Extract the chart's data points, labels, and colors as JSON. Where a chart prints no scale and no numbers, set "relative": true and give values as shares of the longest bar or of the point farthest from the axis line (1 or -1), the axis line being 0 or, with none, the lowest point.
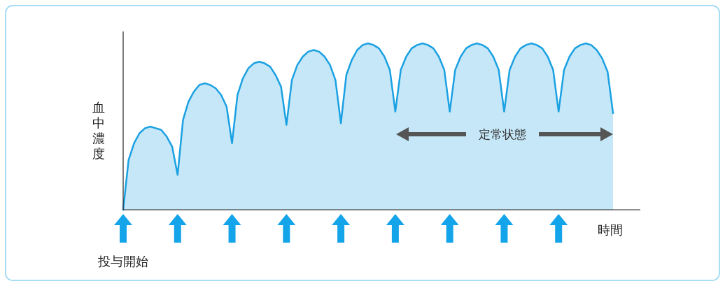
{
  "chart_data": {
    "type": "area",
    "relative": true,
    "xlabel": "時間",
    "ylabel": "血中濃度",
    "categories": [
      null,
      null,
      null,
      null,
      null,
      null,
      null,
      null,
      null,
      null,
      null,
      null,
      null,
      null,
      null,
      null,
      null,
      null,
      null,
      null,
      null,
      null,
      null,
      null,
      null,
      null,
      null,
      null,
      null,
      null,
      null,
      null,
      null,
      null,
      null,
      null,
      null,
      null,
      null,
      null,
      null,
      null,
      null,
      null,
      null,
      null,
      null,
      null,
      null,
      null,
      null,
      null,
      null,
      null,
      null,
      null,
      null,
      null,
      null,
      null,
      null,
      null,
      null,
      null,
      null,
      null,
      null,
      null,
      null,
      null,
      null,
      null,
      null,
      null,
      null,
      null,
      null,
      null,
      null,
      null,
      null,
      null,
      null,
      null,
      null,
      null,
      null,
      null,
      null,
      null,
      null
    ],
    "series": [
      {
        "color": "#1ba1e2",
        "values": [
          0,
          0.3,
          0.4,
          0.46,
          0.49,
          0.5,
          0.49,
          0.48,
          0.44,
          0.38,
          0.21,
          0.54,
          0.65,
          0.71,
          0.75,
          0.76,
          0.75,
          0.73,
          0.69,
          0.62,
          0.4,
          0.69,
          0.79,
          0.85,
          0.88,
          0.89,
          0.88,
          0.86,
          0.81,
          0.74,
          0.51,
          0.78,
          0.87,
          0.92,
          0.95,
          0.96,
          0.95,
          0.92,
          0.87,
          0.78,
          0.52,
          0.81,
          0.9,
          0.96,
          0.99,
          1,
          0.99,
          0.97,
          0.92,
          0.84,
          0.59,
          0.84,
          0.92,
          0.97,
          0.99,
          1,
          0.99,
          0.97,
          0.92,
          0.84,
          0.59,
          0.84,
          0.92,
          0.97,
          0.99,
          1,
          0.99,
          0.97,
          0.92,
          0.84,
          0.59,
          0.84,
          0.92,
          0.97,
          0.99,
          1,
          0.99,
          0.97,
          0.92,
          0.84,
          0.59,
          0.84,
          0.92,
          0.97,
          0.99,
          1,
          0.99,
          0.96,
          0.91,
          0.83,
          0.58
        ]
      }
    ],
    "annotations": [
      "定常状態",
      "投与開始"
    ]
  }
}
